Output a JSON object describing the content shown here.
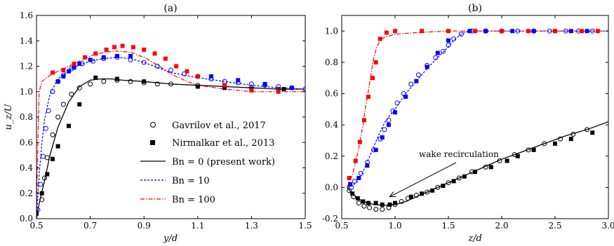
{
  "chart_data": [
    {
      "type": "line",
      "title": "(a)",
      "xlabel": "y/d",
      "ylabel": "u_z/U",
      "xlim": [
        0.5,
        1.5
      ],
      "ylim": [
        0.0,
        1.6
      ],
      "xticks": [
        "0.5",
        "0.7",
        "0.9",
        "1.1",
        "1.3",
        "1.5"
      ],
      "yticks": [
        "0.0",
        "0.2",
        "0.4",
        "0.6",
        "0.8",
        "1.0",
        "1.2",
        "1.4",
        "1.6"
      ],
      "grid": false,
      "legend_position": "center-right",
      "legend": [
        {
          "label": "Gavrilov et al., 2017",
          "marker": "open-circle"
        },
        {
          "label": "Nirmalkar et al., 2013",
          "marker": "filled-square"
        },
        {
          "label": "Bn = 0 (present work)",
          "line": "solid",
          "color": "#000000"
        },
        {
          "label": "Bn = 10",
          "line": "dashed",
          "color": "#0000ff"
        },
        {
          "label": "Bn = 100",
          "line": "dash-dot",
          "color": "#ff0000"
        }
      ],
      "series": [
        {
          "name": "Bn = 0 (present work)",
          "color": "#000000",
          "style": "solid",
          "x": [
            0.5,
            0.51,
            0.53,
            0.55,
            0.58,
            0.62,
            0.66,
            0.7,
            0.74,
            0.78,
            0.82,
            0.9,
            1.0,
            1.1,
            1.2,
            1.3,
            1.4,
            1.5
          ],
          "y": [
            0.0,
            0.12,
            0.3,
            0.5,
            0.72,
            0.92,
            1.04,
            1.09,
            1.1,
            1.1,
            1.09,
            1.08,
            1.06,
            1.05,
            1.04,
            1.03,
            1.02,
            1.02
          ]
        },
        {
          "name": "Bn = 10",
          "color": "#0000ff",
          "style": "dashed",
          "x": [
            0.5,
            0.51,
            0.52,
            0.53,
            0.55,
            0.58,
            0.62,
            0.66,
            0.7,
            0.75,
            0.8,
            0.85,
            0.9,
            0.95,
            1.0,
            1.1,
            1.2,
            1.3,
            1.4,
            1.5
          ],
          "y": [
            0.0,
            0.35,
            0.6,
            0.78,
            0.98,
            1.1,
            1.17,
            1.21,
            1.24,
            1.26,
            1.27,
            1.26,
            1.23,
            1.19,
            1.15,
            1.11,
            1.08,
            1.05,
            1.03,
            1.02
          ]
        },
        {
          "name": "Bn = 100",
          "color": "#ff0000",
          "style": "dash-dot",
          "x": [
            0.5,
            0.505,
            0.51,
            0.52,
            0.55,
            0.6,
            0.65,
            0.7,
            0.75,
            0.8,
            0.85,
            0.9,
            0.95,
            1.0,
            1.05,
            1.1,
            1.2,
            1.3,
            1.4,
            1.5
          ],
          "y": [
            0.0,
            0.6,
            1.0,
            1.08,
            1.13,
            1.18,
            1.23,
            1.28,
            1.31,
            1.32,
            1.31,
            1.27,
            1.21,
            1.14,
            1.09,
            1.05,
            1.02,
            1.0,
            1.0,
            1.0
          ]
        },
        {
          "name": "Gavrilov et al., 2017 (Bn = 0)",
          "color": "#000000",
          "marker": "open-circle",
          "x": [
            0.52,
            0.53,
            0.54,
            0.56,
            0.58,
            0.6,
            0.63,
            0.66,
            0.7,
            0.75,
            0.8,
            0.85,
            0.9,
            0.95,
            1.0,
            1.1,
            1.2,
            1.3,
            1.4
          ],
          "y": [
            0.15,
            0.32,
            0.48,
            0.66,
            0.8,
            0.9,
            0.98,
            1.03,
            1.06,
            1.08,
            1.09,
            1.08,
            1.07,
            1.06,
            1.06,
            1.05,
            1.04,
            1.03,
            1.02
          ]
        },
        {
          "name": "Nirmalkar et al., 2013 (Bn = 0)",
          "color": "#000000",
          "marker": "filled-square",
          "x": [
            0.5,
            0.52,
            0.54,
            0.56,
            0.58,
            0.62,
            0.66,
            0.72,
            0.8,
            0.9,
            1.1,
            1.2,
            1.3,
            1.42
          ],
          "y": [
            0.04,
            0.2,
            0.35,
            0.47,
            0.57,
            0.73,
            0.9,
            1.11,
            1.1,
            1.08,
            1.04,
            1.03,
            1.02,
            1.02
          ]
        },
        {
          "name": "Gavrilov et al., 2017 (Bn = 10)",
          "color": "#0000ff",
          "marker": "open-circle",
          "x": [
            0.505,
            0.515,
            0.525,
            0.535,
            0.545,
            0.56,
            0.58,
            0.6,
            0.63,
            0.67,
            0.71,
            0.75,
            0.8,
            0.85,
            0.9,
            0.95,
            1.0,
            1.05,
            1.1,
            1.15,
            1.2,
            1.25,
            1.3,
            1.35,
            1.4,
            1.45,
            1.5
          ],
          "y": [
            0.07,
            0.27,
            0.49,
            0.71,
            0.85,
            1.0,
            1.08,
            1.13,
            1.18,
            1.22,
            1.24,
            1.26,
            1.27,
            1.25,
            1.23,
            1.2,
            1.17,
            1.14,
            1.12,
            1.1,
            1.08,
            1.07,
            1.06,
            1.05,
            1.04,
            1.03,
            1.02
          ]
        },
        {
          "name": "Nirmalkar et al., 2013 (Bn = 10)",
          "color": "#0000ff",
          "marker": "filled-square",
          "x": [
            0.58,
            0.6,
            0.62,
            0.64,
            0.66,
            0.7,
            0.75,
            0.8,
            0.85,
            1.15,
            1.25,
            1.35,
            1.45
          ],
          "y": [
            1.08,
            1.12,
            1.16,
            1.19,
            1.22,
            1.25,
            1.27,
            1.28,
            1.28,
            1.12,
            1.09,
            1.06,
            1.03
          ]
        },
        {
          "name": "Nirmalkar et al., 2013 (Bn = 100)",
          "color": "#ff0000",
          "marker": "filled-square",
          "x": [
            0.56,
            0.6,
            0.64,
            0.68,
            0.72,
            0.76,
            0.79,
            0.82,
            0.86,
            0.9,
            0.94,
            0.98,
            1.02,
            1.06,
            1.1,
            1.2,
            1.3,
            1.4
          ],
          "y": [
            1.15,
            1.17,
            1.22,
            1.27,
            1.3,
            1.33,
            1.35,
            1.36,
            1.35,
            1.33,
            1.3,
            1.26,
            1.2,
            1.16,
            1.12,
            1.05,
            1.01,
            1.0
          ]
        }
      ]
    },
    {
      "type": "line",
      "title": "(b)",
      "xlabel": "z/d",
      "ylabel": "",
      "xlim": [
        0.5,
        3.0
      ],
      "ylim": [
        -0.2,
        1.1
      ],
      "xticks": [
        "0.5",
        "1.0",
        "1.5",
        "2.0",
        "2.5",
        "3.0"
      ],
      "yticks": [
        "-0.2",
        "0.0",
        "0.2",
        "0.4",
        "0.6",
        "0.8",
        "1.0"
      ],
      "grid": false,
      "annotations": [
        {
          "text": "wake recirculation",
          "arrow_to": [
            0.95,
            -0.06
          ]
        }
      ],
      "series": [
        {
          "name": "Bn = 0 (present work)",
          "color": "#000000",
          "style": "solid",
          "x": [
            0.55,
            0.6,
            0.65,
            0.7,
            0.75,
            0.8,
            0.9,
            1.0,
            1.1,
            1.2,
            1.3,
            1.4,
            1.5,
            1.6,
            1.7,
            1.8,
            1.9,
            2.0,
            2.2,
            2.4,
            2.6,
            2.8,
            3.0
          ],
          "y": [
            0.0,
            -0.04,
            -0.07,
            -0.09,
            -0.1,
            -0.11,
            -0.115,
            -0.11,
            -0.09,
            -0.06,
            -0.03,
            0.0,
            0.03,
            0.06,
            0.09,
            0.12,
            0.15,
            0.18,
            0.23,
            0.28,
            0.33,
            0.37,
            0.42
          ]
        },
        {
          "name": "Bn = 10",
          "color": "#0000ff",
          "style": "dashed",
          "x": [
            0.55,
            0.6,
            0.65,
            0.7,
            0.75,
            0.8,
            0.85,
            0.9,
            0.95,
            1.0,
            1.1,
            1.2,
            1.3,
            1.4,
            1.5,
            1.55,
            1.6,
            1.65,
            1.7,
            1.8,
            2.0,
            2.5,
            3.0
          ],
          "y": [
            0.0,
            0.01,
            0.04,
            0.1,
            0.18,
            0.26,
            0.34,
            0.41,
            0.46,
            0.5,
            0.6,
            0.68,
            0.76,
            0.83,
            0.9,
            0.94,
            0.97,
            0.99,
            1.0,
            1.0,
            1.0,
            1.0,
            1.0
          ]
        },
        {
          "name": "Bn = 100",
          "color": "#ff0000",
          "style": "dash-dot",
          "x": [
            0.55,
            0.6,
            0.65,
            0.7,
            0.72,
            0.75,
            0.78,
            0.8,
            0.83,
            0.86,
            0.9,
            1.0,
            1.2,
            1.5,
            2.0,
            2.5,
            3.0
          ],
          "y": [
            0.0,
            0.08,
            0.22,
            0.4,
            0.5,
            0.62,
            0.75,
            0.83,
            0.9,
            0.94,
            0.96,
            0.98,
            0.99,
            1.0,
            1.0,
            1.0,
            1.0
          ]
        },
        {
          "name": "Gavrilov et al., 2017 (Bn = 0)",
          "color": "#000000",
          "marker": "open-circle",
          "x": [
            0.57,
            0.61,
            0.66,
            0.71,
            0.76,
            0.82,
            0.88,
            0.94,
            1.0,
            1.06,
            1.12,
            1.2,
            1.3,
            1.4,
            1.5,
            1.6,
            1.72,
            1.85,
            1.98,
            2.12,
            2.25,
            2.4,
            2.55,
            2.67,
            2.8
          ],
          "y": [
            -0.02,
            -0.06,
            -0.1,
            -0.12,
            -0.13,
            -0.14,
            -0.14,
            -0.13,
            -0.11,
            -0.09,
            -0.07,
            -0.05,
            -0.03,
            0.0,
            0.03,
            0.06,
            0.1,
            0.13,
            0.17,
            0.21,
            0.24,
            0.28,
            0.31,
            0.34,
            0.37
          ]
        },
        {
          "name": "Nirmalkar et al., 2013 (Bn = 0)",
          "color": "#000000",
          "marker": "filled-square",
          "x": [
            0.6,
            0.65,
            0.7,
            0.75,
            0.82,
            0.88,
            0.95,
            1.0,
            1.15,
            1.25,
            1.35,
            1.45,
            1.55,
            1.65,
            1.75,
            1.9,
            2.05,
            2.15,
            2.3,
            2.5,
            2.65,
            2.85
          ],
          "y": [
            -0.04,
            -0.07,
            -0.09,
            -0.1,
            -0.1,
            -0.11,
            -0.11,
            -0.1,
            -0.06,
            -0.04,
            -0.02,
            0.01,
            0.04,
            0.07,
            0.1,
            0.13,
            0.17,
            0.2,
            0.24,
            0.28,
            0.31,
            0.35
          ]
        },
        {
          "name": "Gavrilov et al., 2017 (Bn = 10)",
          "color": "#0000ff",
          "marker": "open-circle",
          "x": [
            0.59,
            0.62,
            0.68,
            0.74,
            0.8,
            0.86,
            0.9,
            0.94,
            0.98,
            1.02,
            1.08,
            1.15,
            1.22,
            1.3,
            1.38,
            1.45,
            1.5,
            1.55,
            1.62,
            1.72,
            1.85,
            2.0,
            2.15,
            2.3,
            2.45,
            2.6,
            2.72,
            2.85
          ],
          "y": [
            0.0,
            0.04,
            0.09,
            0.16,
            0.24,
            0.31,
            0.37,
            0.43,
            0.49,
            0.54,
            0.6,
            0.66,
            0.72,
            0.78,
            0.83,
            0.87,
            0.91,
            0.95,
            0.98,
            1.0,
            1.0,
            1.0,
            1.0,
            1.0,
            1.0,
            1.0,
            1.0,
            1.0
          ]
        },
        {
          "name": "Nirmalkar et al., 2013 (Bn = 10)",
          "color": "#0000ff",
          "marker": "filled-square",
          "x": [
            0.58,
            0.66,
            0.74,
            0.82,
            0.88,
            0.94,
            1.0,
            1.1,
            1.2,
            1.3,
            1.4,
            1.5,
            1.7,
            1.85,
            2.1,
            2.3,
            2.5,
            2.65,
            2.8
          ],
          "y": [
            0.02,
            0.06,
            0.14,
            0.24,
            0.32,
            0.4,
            0.48,
            0.58,
            0.68,
            0.77,
            0.86,
            0.94,
            1.0,
            1.0,
            1.0,
            1.0,
            1.0,
            1.0,
            1.0
          ]
        },
        {
          "name": "Nirmalkar et al., 2013 (Bn = 100)",
          "color": "#ff0000",
          "marker": "filled-square",
          "x": [
            0.57,
            0.63,
            0.67,
            0.71,
            0.75,
            0.79,
            0.82,
            0.86,
            0.92,
            1.0,
            1.25,
            1.5,
            1.75,
            2.0,
            2.25,
            2.5,
            2.75,
            2.9
          ],
          "y": [
            0.06,
            0.17,
            0.29,
            0.43,
            0.58,
            0.7,
            0.8,
            0.95,
            0.99,
            1.0,
            1.0,
            1.0,
            1.0,
            1.0,
            1.0,
            1.0,
            1.0,
            1.0
          ]
        }
      ]
    }
  ]
}
